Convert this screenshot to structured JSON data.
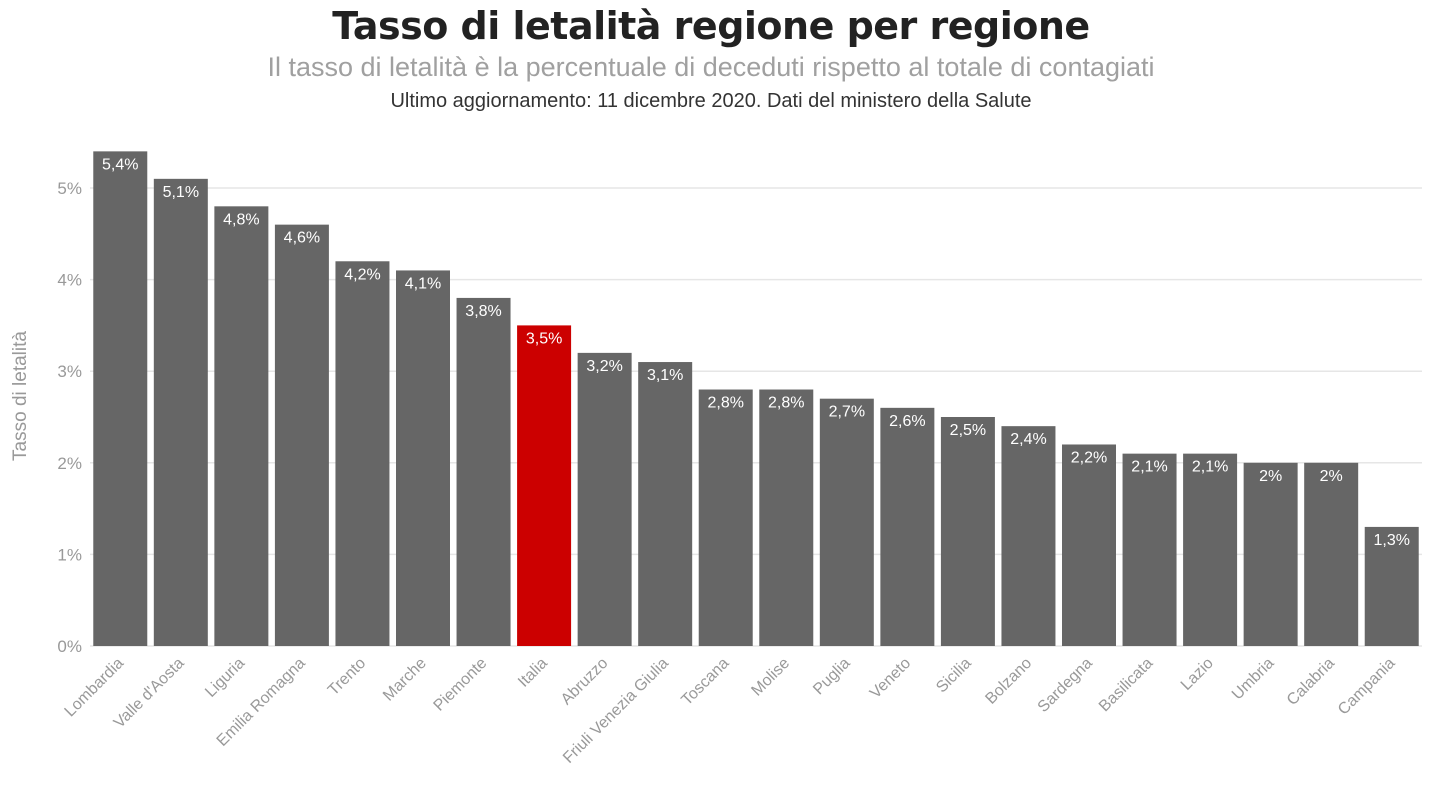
{
  "header": {
    "title": "Tasso di letalità regione per regione",
    "subtitle": "Il tasso di letalità è la percentuale di deceduti rispetto al totale di contagiati",
    "update": "Ultimo aggiornamento: 11 dicembre 2020. Dati del ministero della Salute"
  },
  "colors": {
    "bar": "#666666",
    "highlight": "#cc0000",
    "grid": "#e6e6e6",
    "axis_text": "#999999"
  },
  "chart_data": {
    "type": "bar",
    "title": "Tasso di letalità regione per regione",
    "subtitle": "Il tasso di letalità è la percentuale di deceduti rispetto al totale di contagiati",
    "xlabel": "",
    "ylabel": "Tasso di letalità",
    "ylim": [
      0,
      5.4
    ],
    "yticks": [
      0,
      1,
      2,
      3,
      4,
      5
    ],
    "ytick_labels": [
      "0%",
      "1%",
      "2%",
      "3%",
      "4%",
      "5%"
    ],
    "grid": true,
    "highlight": "Italia",
    "categories": [
      "Lombardia",
      "Valle d'Aosta",
      "Liguria",
      "Emilia Romagna",
      "Trento",
      "Marche",
      "Piemonte",
      "Italia",
      "Abruzzo",
      "Friuli Venezia Giulia",
      "Toscana",
      "Molise",
      "Puglia",
      "Veneto",
      "Sicilia",
      "Bolzano",
      "Sardegna",
      "Basilicata",
      "Lazio",
      "Umbria",
      "Calabria",
      "Campania"
    ],
    "values": [
      5.4,
      5.1,
      4.8,
      4.6,
      4.2,
      4.1,
      3.8,
      3.5,
      3.2,
      3.1,
      2.8,
      2.8,
      2.7,
      2.6,
      2.5,
      2.4,
      2.2,
      2.1,
      2.1,
      2.0,
      2.0,
      1.3
    ],
    "labels": [
      "5,4%",
      "5,1%",
      "4,8%",
      "4,6%",
      "4,2%",
      "4,1%",
      "3,8%",
      "3,5%",
      "3,2%",
      "3,1%",
      "2,8%",
      "2,8%",
      "2,7%",
      "2,6%",
      "2,5%",
      "2,4%",
      "2,2%",
      "2,1%",
      "2,1%",
      "2%",
      "2%",
      "1,3%"
    ]
  }
}
